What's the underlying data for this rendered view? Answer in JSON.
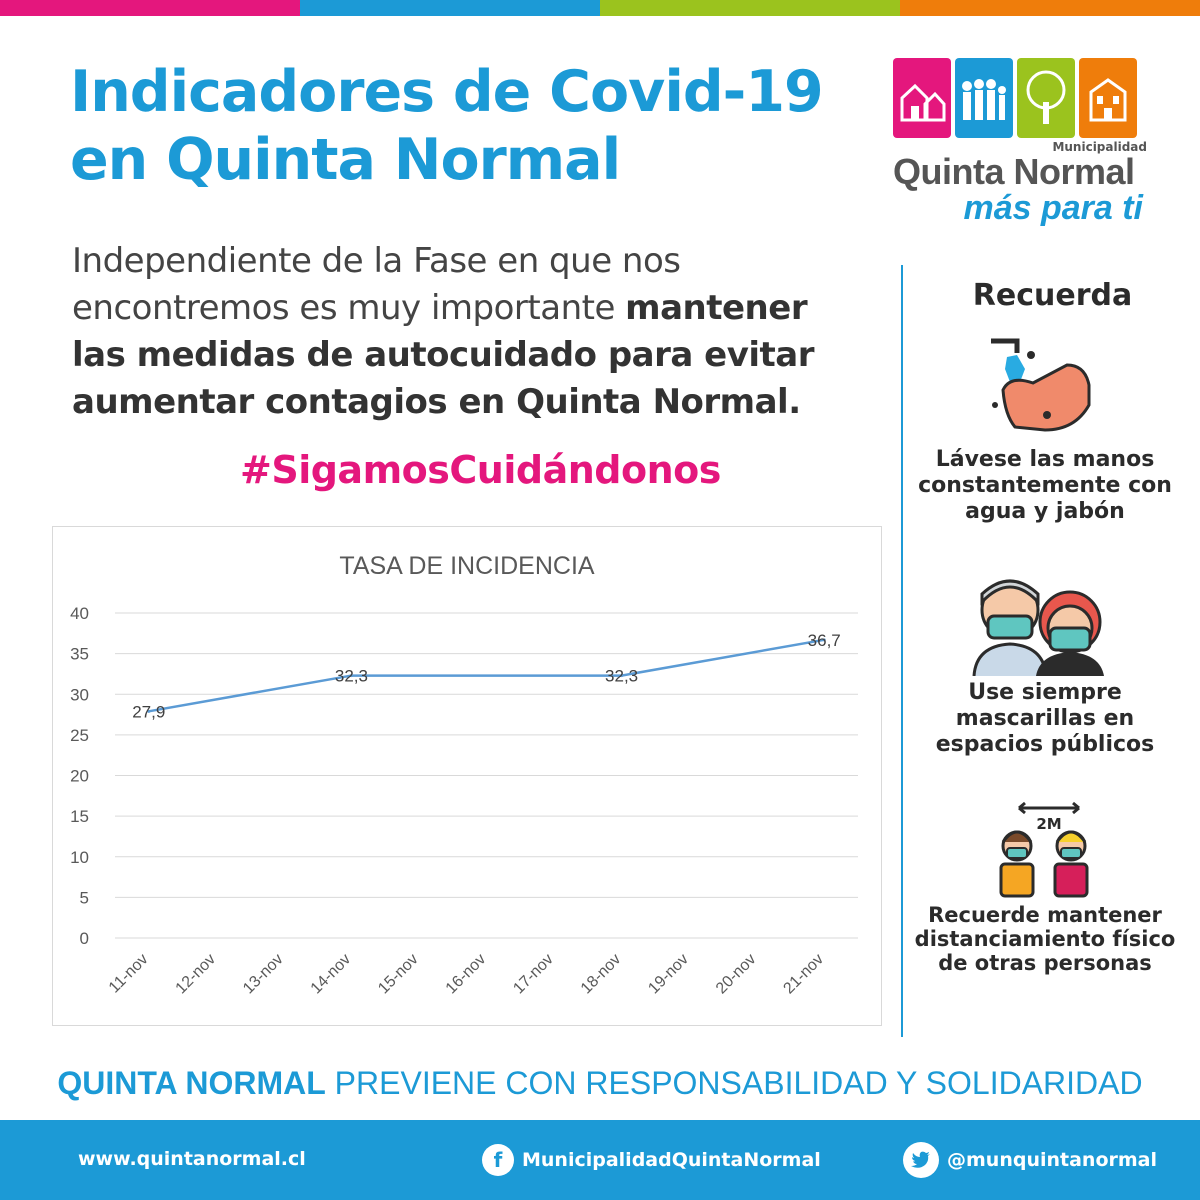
{
  "colors": {
    "bar": [
      "#e4177d",
      "#1c9ad6",
      "#9bc31e",
      "#ef7d0b"
    ],
    "accent_blue": "#1c9ad6",
    "accent_pink": "#e4177d",
    "line": "#5b9bd5"
  },
  "title": {
    "line1": "Indicadores de Covid-19",
    "line2": "en Quinta Normal"
  },
  "intro": {
    "plain": "Independiente de la Fase en que nos encontremos es muy importante ",
    "bold": "mantener las medidas de autocuidado para evitar aumentar contagios en Quinta Normal."
  },
  "hashtag": "#SigamosCuidándonos",
  "logo": {
    "municipalidad": "Municipalidad",
    "name": "Quinta Normal",
    "tagline": "más para ti"
  },
  "sidebar": {
    "title": "Recuerda",
    "tips": [
      {
        "icon": "hand-washing-icon",
        "text": "Lávese las manos constantemente con agua y jabón"
      },
      {
        "icon": "face-mask-icon",
        "text": "Use siempre mascarillas en espacios públicos"
      },
      {
        "icon": "social-distance-icon",
        "text": "Recuerde mantener distanciamiento físico de otras personas",
        "badge": "2M"
      }
    ]
  },
  "chart_data": {
    "type": "line",
    "title": "TASA DE INCIDENCIA",
    "categories": [
      "11-nov",
      "12-nov",
      "13-nov",
      "14-nov",
      "15-nov",
      "16-nov",
      "17-nov",
      "18-nov",
      "19-nov",
      "20-nov",
      "21-nov"
    ],
    "points": [
      {
        "x": "11-nov",
        "y": 27.9,
        "label": "27,9"
      },
      {
        "x": "14-nov",
        "y": 32.3,
        "label": "32,3"
      },
      {
        "x": "18-nov",
        "y": 32.3,
        "label": "32,3"
      },
      {
        "x": "21-nov",
        "y": 36.7,
        "label": "36,7"
      }
    ],
    "yticks": [
      "0",
      "5",
      "10",
      "15",
      "20",
      "25",
      "30",
      "35",
      "40"
    ],
    "ylim": [
      0,
      40
    ],
    "grid": true,
    "legend": "none"
  },
  "slogan": {
    "bold": "QUINTA NORMAL",
    "rest": " PREVIENE CON RESPONSABILIDAD Y SOLIDARIDAD"
  },
  "footer": {
    "website": "www.quintanormal.cl",
    "facebook": "MunicipalidadQuintaNormal",
    "twitter": "@munquintanormal"
  }
}
